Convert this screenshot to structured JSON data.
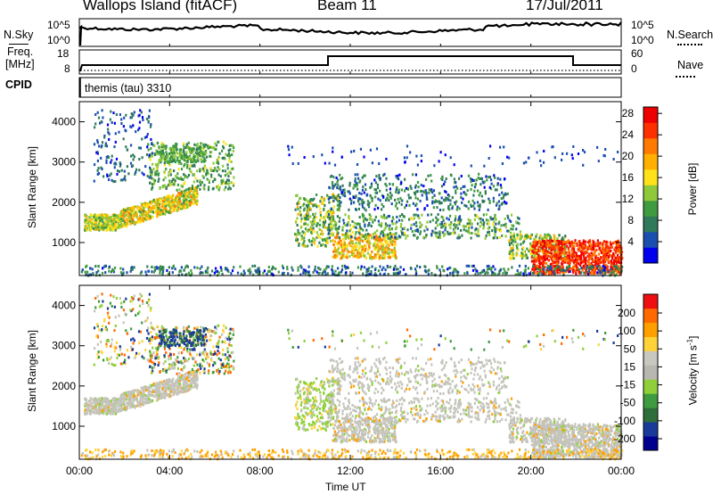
{
  "header": {
    "station": "Wallops Island (fitACF)",
    "beam": "Beam 11",
    "date": "17/Jul/2011"
  },
  "top_panels": {
    "nsky_label": "N.Sky",
    "nsearch_label": "N.Search",
    "freq_label_line1": "Freq.",
    "freq_label_line2": "[MHz]",
    "nave_label": "Nave",
    "cpid_label": "CPID",
    "cpid_value": "themis (tau) 3310",
    "left_ticks_noise": [
      "10^5",
      "10^0"
    ],
    "right_ticks_noise": [
      "10^5",
      "10^0"
    ],
    "left_ticks_freq": [
      "18",
      "8"
    ],
    "right_ticks_freq": [
      "60",
      "0"
    ]
  },
  "chart_data": [
    {
      "type": "heatmap",
      "name": "power",
      "ylabel": "Slant Range [km]",
      "xlabel": "Time UT",
      "x_ticks": [
        "00:00",
        "04:00",
        "08:00",
        "12:00",
        "16:00",
        "20:00",
        "00:00"
      ],
      "y_ticks": [
        1000,
        2000,
        3000,
        4000
      ],
      "ylim": [
        180,
        4500
      ],
      "xlim_hours": [
        0,
        24
      ],
      "colorbar_label": "Power [dB]",
      "colorbar_ticks": [
        "4",
        "8",
        "12",
        "16",
        "20",
        "24",
        "28"
      ],
      "colorbar_colors": [
        "#0000ee",
        "#1a4fb0",
        "#2f7a5a",
        "#3f9b3f",
        "#8fc93a",
        "#ffe21a",
        "#ffb000",
        "#ff7a00",
        "#ff3000",
        "#ee0000"
      ]
    },
    {
      "type": "heatmap",
      "name": "velocity",
      "ylabel": "Slant Range [km]",
      "xlabel": "Time UT",
      "x_ticks": [
        "00:00",
        "04:00",
        "08:00",
        "12:00",
        "16:00",
        "20:00",
        "00:00"
      ],
      "y_ticks": [
        1000,
        2000,
        3000,
        4000
      ],
      "ylim": [
        180,
        4500
      ],
      "xlim_hours": [
        0,
        24
      ],
      "colorbar_label": "Velocity [m s",
      "colorbar_label_sup": "-1",
      "colorbar_label_end": "]",
      "colorbar_ticks": [
        "200",
        "100",
        "50",
        "15",
        "-15",
        "-50",
        "-100",
        "-200"
      ],
      "colorbar_colors": [
        "#00008f",
        "#1a3a9a",
        "#2f6e3a",
        "#3f9b3f",
        "#8fd03a",
        "#b8b8b0",
        "#c8c8c0",
        "#ffd23a",
        "#ffa000",
        "#ff6a00",
        "#ee1010"
      ]
    }
  ]
}
